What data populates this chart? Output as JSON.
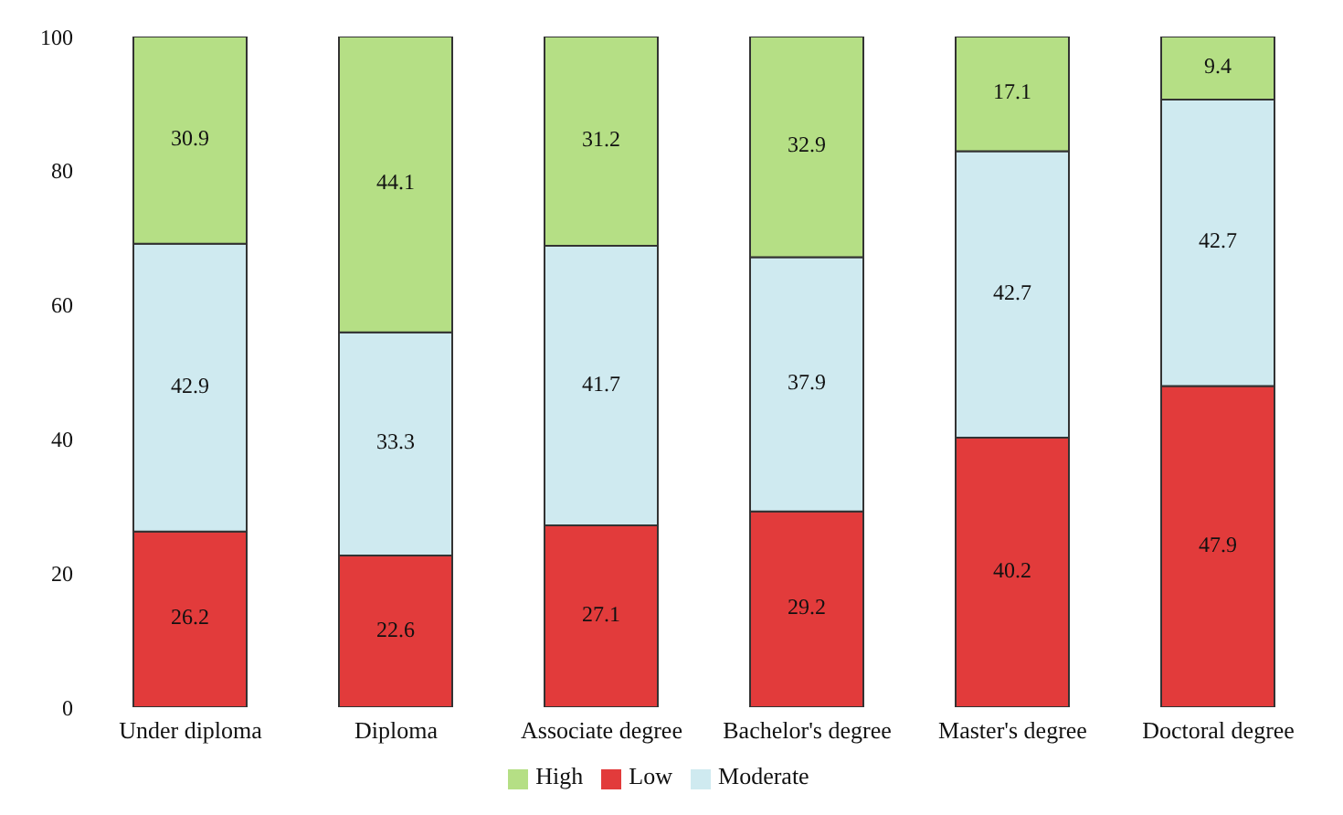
{
  "chart_data": {
    "type": "bar",
    "stacked": true,
    "categories": [
      "Under diploma",
      "Diploma",
      "Associate degree",
      "Bachelor's degree",
      "Master's degree",
      "Doctoral degree"
    ],
    "series": [
      {
        "name": "Low",
        "color": "#e23b3b",
        "values": [
          26.2,
          22.6,
          27.1,
          29.2,
          40.2,
          47.9
        ]
      },
      {
        "name": "Moderate",
        "color": "#cfeaf0",
        "values": [
          42.9,
          33.3,
          41.7,
          37.9,
          42.7,
          42.7
        ]
      },
      {
        "name": "High",
        "color": "#b5df85",
        "values": [
          30.9,
          44.1,
          31.2,
          32.9,
          17.1,
          9.4
        ]
      }
    ],
    "ylim": [
      0,
      100
    ],
    "yticks": [
      0,
      20,
      40,
      60,
      80,
      100
    ],
    "grid": false,
    "legend": "bottom",
    "data_labels": true
  }
}
